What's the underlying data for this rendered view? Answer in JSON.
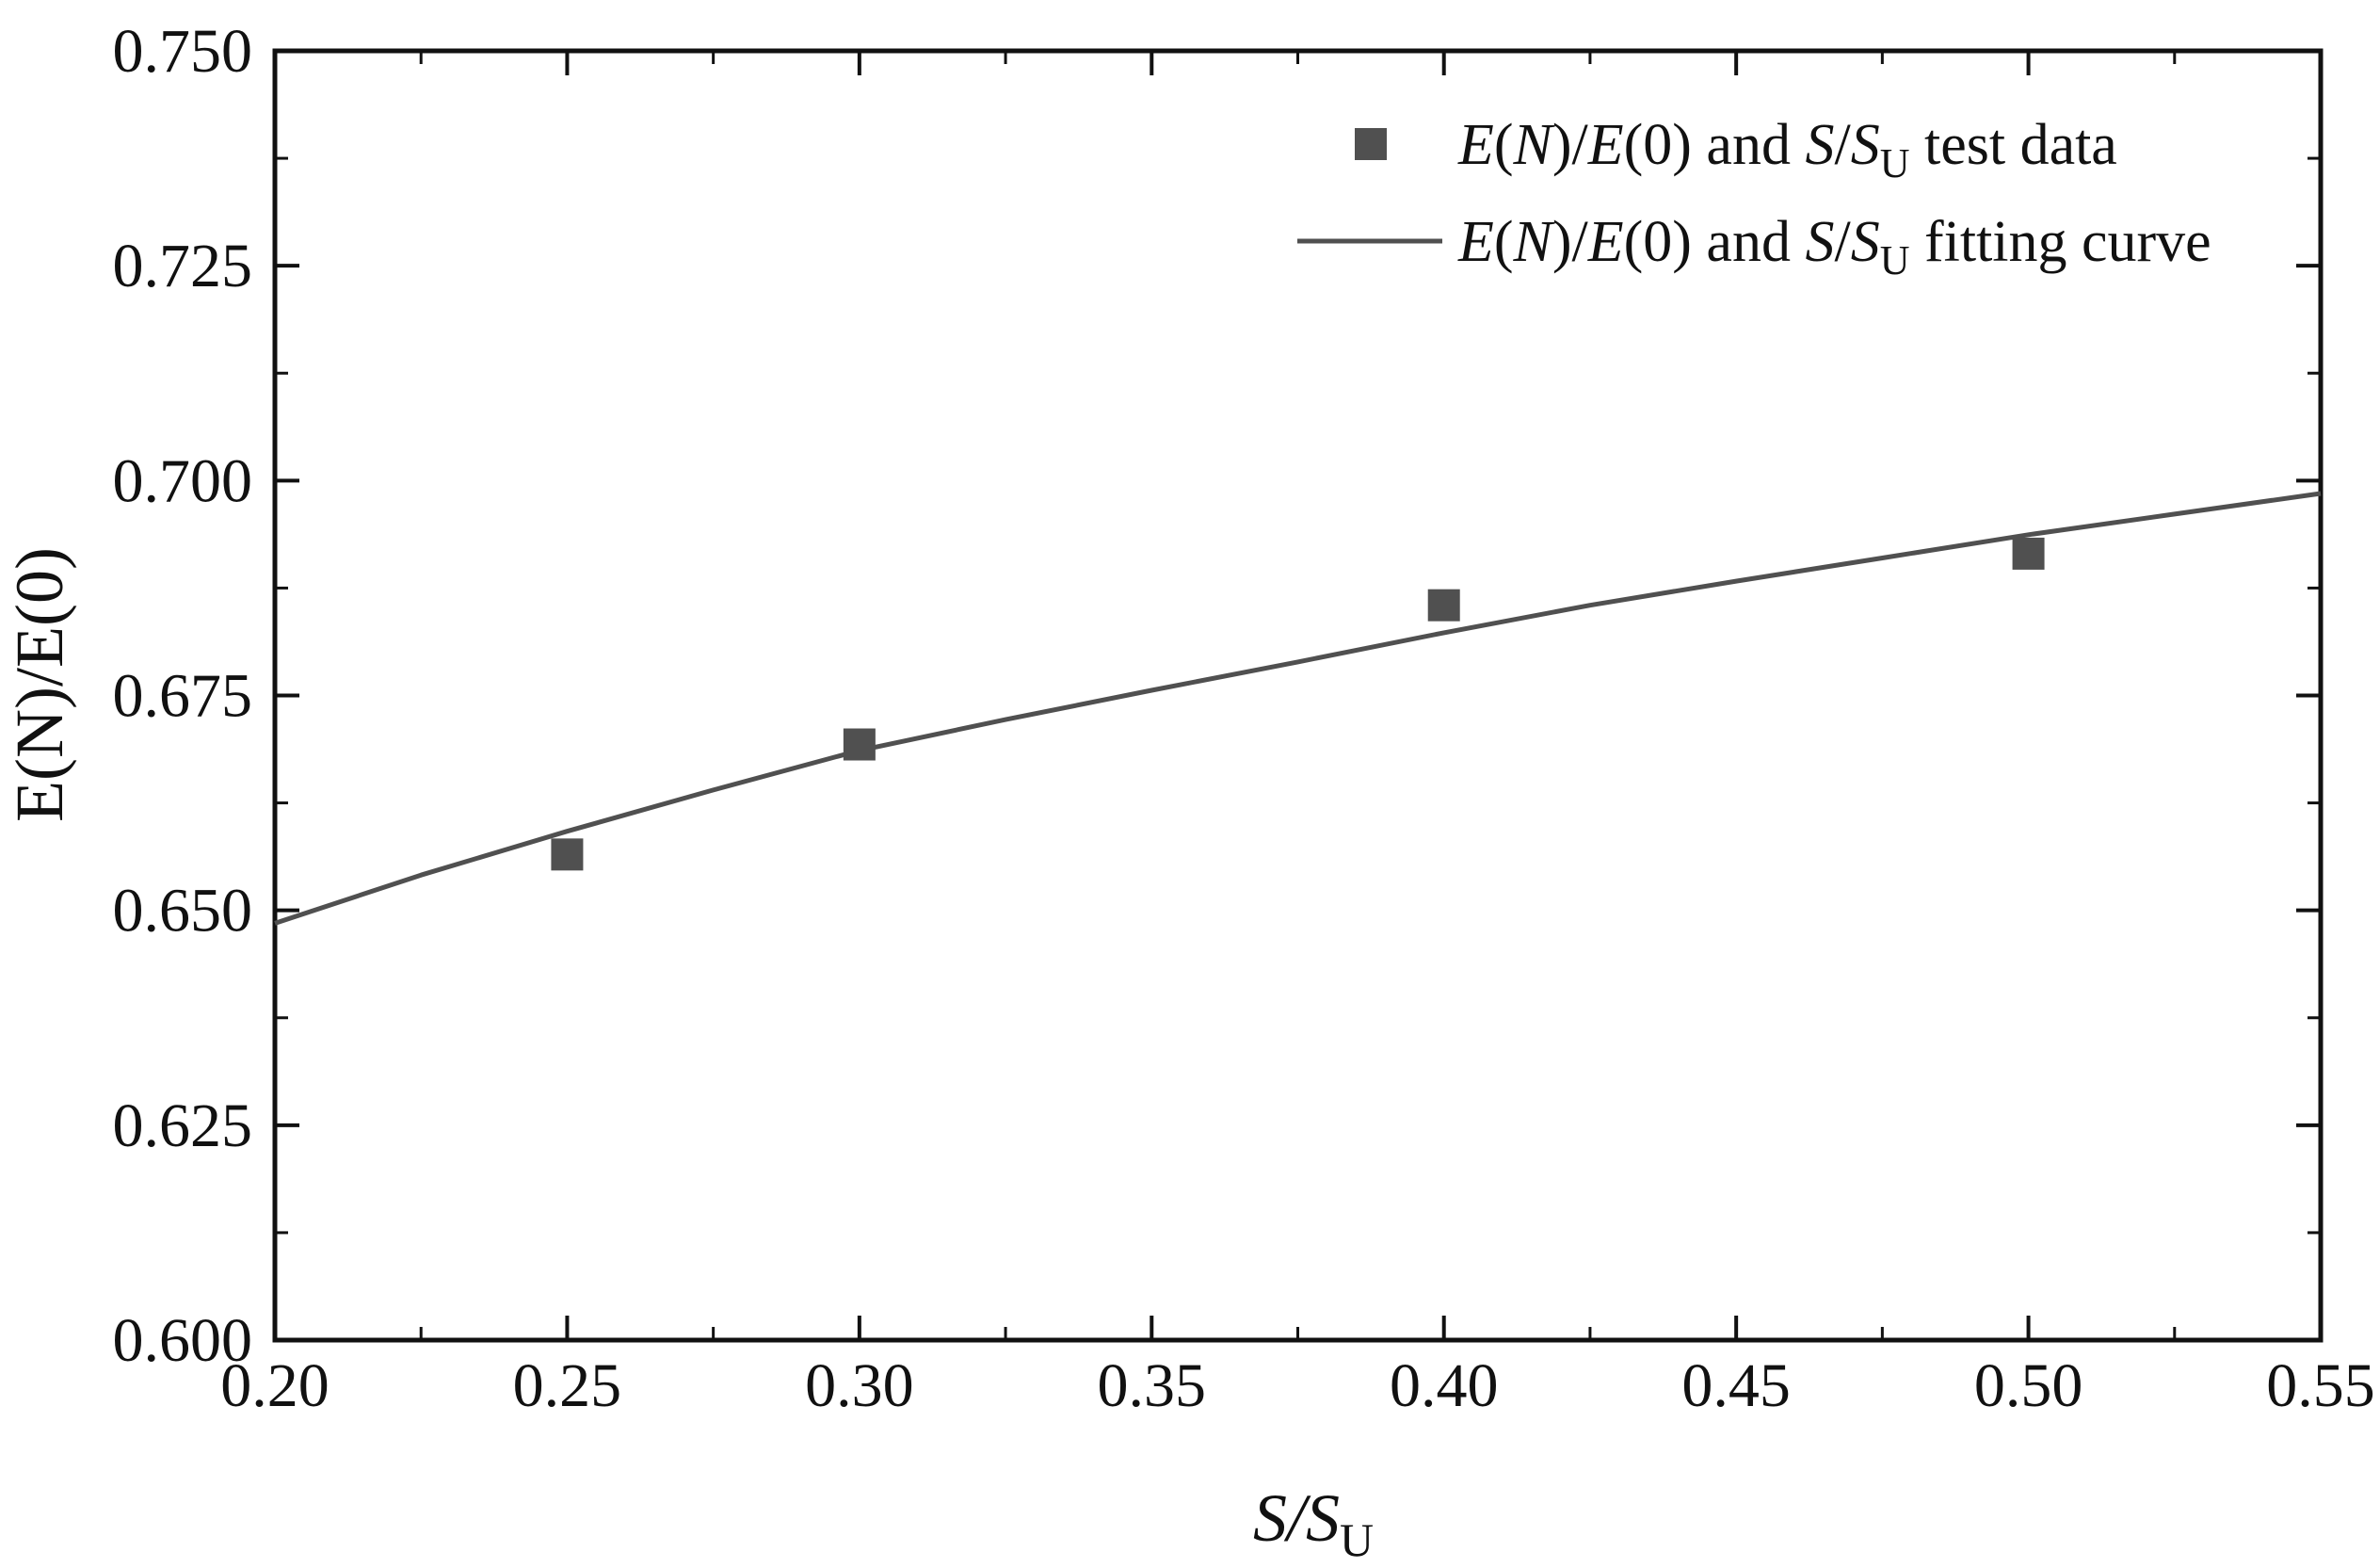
{
  "chart_data": {
    "type": "scatter",
    "title": "",
    "xlim": [
      0.2,
      0.55
    ],
    "ylim": [
      0.6,
      0.75
    ],
    "x_ticks": [
      "0.20",
      "0.25",
      "0.30",
      "0.35",
      "0.40",
      "0.45",
      "0.50",
      "0.55"
    ],
    "y_ticks": [
      "0.600",
      "0.625",
      "0.650",
      "0.675",
      "0.700",
      "0.725",
      "0.750"
    ],
    "xlabel": {
      "main": "S/S",
      "sub": "U"
    },
    "ylabel": "E(N)/E(0)",
    "grid": false,
    "legend_position": "top-right",
    "series": [
      {
        "name": "E(N)/E(0) and S/SU test data",
        "kind": "markers",
        "marker": "square",
        "color": "#505050",
        "x": [
          0.25,
          0.3,
          0.4,
          0.5
        ],
        "y": [
          0.6565,
          0.6693,
          0.6855,
          0.6915
        ]
      },
      {
        "name": "E(N)/E(0) and S/SU fitting curve",
        "kind": "line",
        "color": "#505050",
        "x": [
          0.2,
          0.225,
          0.25,
          0.275,
          0.3,
          0.325,
          0.35,
          0.375,
          0.4,
          0.425,
          0.45,
          0.475,
          0.5,
          0.525,
          0.55
        ],
        "y": [
          0.6485,
          0.6541,
          0.6592,
          0.664,
          0.6686,
          0.6722,
          0.6756,
          0.6789,
          0.6823,
          0.6855,
          0.6883,
          0.691,
          0.6937,
          0.6961,
          0.6985
        ]
      }
    ],
    "legend": [
      {
        "parts": [
          "E",
          "(",
          "N",
          ")/",
          "E",
          "(0) and ",
          "S",
          "/",
          "S",
          "U",
          " test data"
        ]
      },
      {
        "parts": [
          "E",
          "(",
          "N",
          ")/",
          "E",
          "(0) and ",
          "S",
          "/",
          "S",
          "U",
          " fitting curve"
        ]
      }
    ]
  }
}
